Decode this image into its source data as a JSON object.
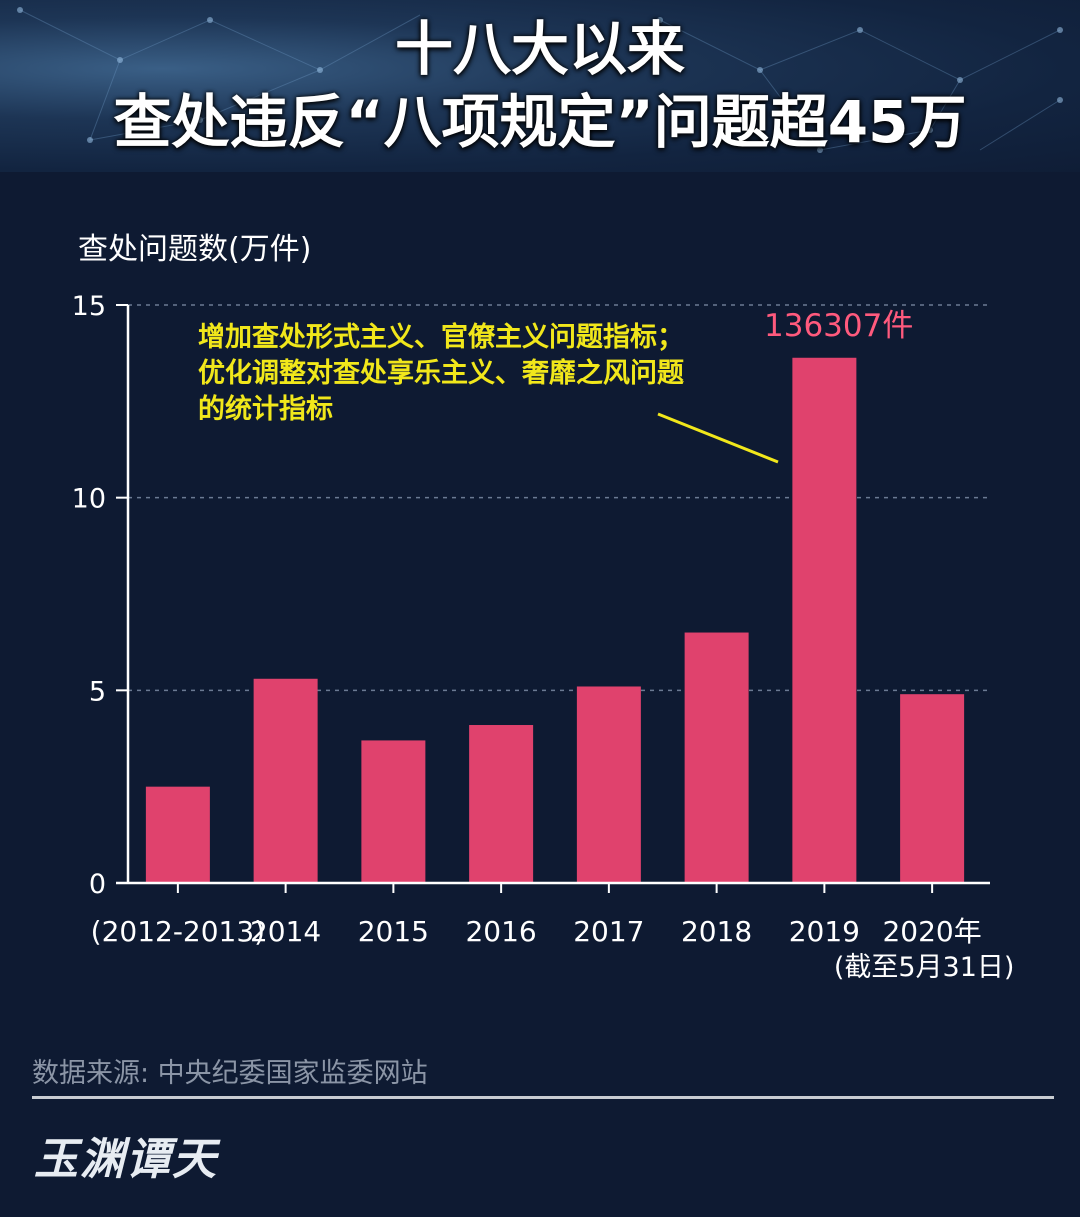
{
  "header": {
    "title_line1": "十八大以来",
    "title_line2": "查处违反“八项规定”问题超45万"
  },
  "chart_data": {
    "type": "bar",
    "ylabel": "查处问题数(万件)",
    "ylim": [
      0,
      15
    ],
    "yticks": [
      "0",
      "5",
      "10",
      "15"
    ],
    "grid": "dashed horizontal",
    "categories": [
      "(2012-2013)",
      "2014",
      "2015",
      "2016",
      "2017",
      "2018",
      "2019",
      "2020年"
    ],
    "category_sublabels": [
      "",
      "",
      "",
      "",
      "",
      "",
      "",
      "(截至5月31日)"
    ],
    "values": [
      2.5,
      5.3,
      3.7,
      4.1,
      5.1,
      6.5,
      13.6307,
      4.9
    ],
    "peak_label": "136307件",
    "annotation_lines": [
      "增加查处形式主义、官僚主义问题指标；",
      "优化调整对查处享乐主义、奢靡之风问题",
      "的统计指标"
    ]
  },
  "footer": {
    "source": "数据来源: 中央纪委国家监委网站",
    "brand": "玉渊谭天"
  },
  "colors": {
    "background": "#0e1a32",
    "bar": "#e0426d",
    "annotation": "#f1e71b",
    "peak_label": "#ff5a7d",
    "axis": "#ffffff",
    "grid": "#6b7a93"
  }
}
